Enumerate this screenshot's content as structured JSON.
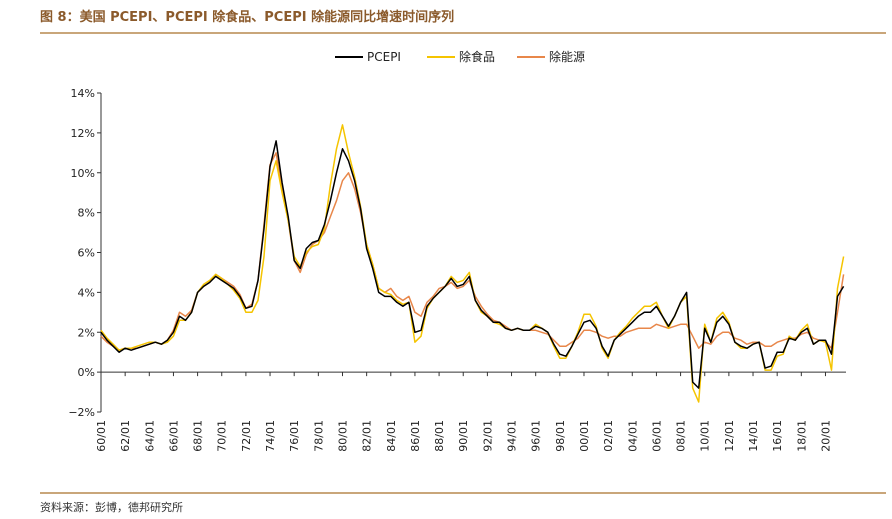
{
  "header": {
    "title": "图 8：美国 PCEPI、PCEPI 除食品、PCEPI 除能源同比增速时间序列"
  },
  "footer": {
    "source": "资料来源：彭博，德邦研究所"
  },
  "chart_data": {
    "type": "line",
    "title": "图 8：美国 PCEPI、PCEPI 除食品、PCEPI 除能源同比增速时间序列",
    "xlabel": "",
    "ylabel": "",
    "ylim": [
      -2,
      14
    ],
    "yticks": [
      "−2%",
      "0%",
      "2%",
      "4%",
      "6%",
      "8%",
      "10%",
      "12%",
      "14%"
    ],
    "xticks": [
      "60/01",
      "62/01",
      "64/01",
      "66/01",
      "68/01",
      "70/01",
      "72/01",
      "74/01",
      "76/01",
      "78/01",
      "80/01",
      "82/01",
      "84/01",
      "86/01",
      "88/01",
      "90/01",
      "92/01",
      "94/01",
      "96/01",
      "98/01",
      "00/01",
      "02/01",
      "04/01",
      "06/01",
      "08/01",
      "10/01",
      "12/01",
      "14/01",
      "16/01",
      "18/01",
      "20/01"
    ],
    "grid": false,
    "legend_position": "top-center",
    "series": [
      {
        "name": "PCEPI",
        "color": "#000000",
        "t": [
          1960,
          1960.5,
          1961,
          1961.5,
          1962,
          1962.5,
          1963,
          1963.5,
          1964,
          1964.5,
          1965,
          1965.5,
          1966,
          1966.5,
          1967,
          1967.5,
          1968,
          1968.5,
          1969,
          1969.5,
          1970,
          1970.5,
          1971,
          1971.5,
          1972,
          1972.5,
          1973,
          1973.5,
          1974,
          1974.5,
          1975,
          1975.5,
          1976,
          1976.5,
          1977,
          1977.5,
          1978,
          1978.5,
          1979,
          1979.5,
          1980,
          1980.5,
          1981,
          1981.5,
          1982,
          1982.5,
          1983,
          1983.5,
          1984,
          1984.5,
          1985,
          1985.5,
          1986,
          1986.5,
          1987,
          1987.5,
          1988,
          1988.5,
          1989,
          1989.5,
          1990,
          1990.5,
          1991,
          1991.5,
          1992,
          1992.5,
          1993,
          1993.5,
          1994,
          1994.5,
          1995,
          1995.5,
          1996,
          1996.5,
          1997,
          1997.5,
          1998,
          1998.5,
          1999,
          1999.5,
          2000,
          2000.5,
          2001,
          2001.5,
          2002,
          2002.5,
          2003,
          2003.5,
          2004,
          2004.5,
          2005,
          2005.5,
          2006,
          2006.5,
          2007,
          2007.5,
          2008,
          2008.5,
          2009,
          2009.5,
          2010,
          2010.5,
          2011,
          2011.5,
          2012,
          2012.5,
          2013,
          2013.5,
          2014,
          2014.5,
          2015,
          2015.5,
          2016,
          2016.5,
          2017,
          2017.5,
          2018,
          2018.5,
          2019,
          2019.5,
          2020,
          2020.5,
          2021,
          2021.5
        ],
        "values": [
          2.0,
          1.6,
          1.3,
          1.0,
          1.2,
          1.1,
          1.2,
          1.3,
          1.4,
          1.5,
          1.4,
          1.6,
          2.0,
          2.8,
          2.6,
          3.0,
          4.0,
          4.3,
          4.5,
          4.8,
          4.6,
          4.4,
          4.2,
          3.8,
          3.2,
          3.3,
          4.6,
          7.2,
          10.3,
          11.6,
          9.5,
          7.8,
          5.6,
          5.2,
          6.2,
          6.5,
          6.6,
          7.4,
          8.6,
          10.0,
          11.2,
          10.6,
          9.6,
          8.2,
          6.2,
          5.2,
          4.0,
          3.8,
          3.8,
          3.5,
          3.3,
          3.5,
          2.0,
          2.1,
          3.3,
          3.7,
          4.0,
          4.3,
          4.7,
          4.3,
          4.4,
          4.8,
          3.6,
          3.1,
          2.8,
          2.5,
          2.5,
          2.2,
          2.1,
          2.2,
          2.1,
          2.1,
          2.3,
          2.2,
          2.0,
          1.4,
          0.9,
          0.8,
          1.3,
          1.9,
          2.5,
          2.6,
          2.2,
          1.3,
          0.8,
          1.6,
          1.9,
          2.2,
          2.5,
          2.8,
          3.0,
          3.0,
          3.3,
          2.8,
          2.3,
          2.8,
          3.5,
          4.0,
          -0.5,
          -0.8,
          2.2,
          1.5,
          2.5,
          2.8,
          2.4,
          1.5,
          1.3,
          1.2,
          1.4,
          1.5,
          0.2,
          0.3,
          1.0,
          1.0,
          1.7,
          1.6,
          2.0,
          2.2,
          1.4,
          1.6,
          1.6,
          0.9,
          3.8,
          4.3
        ]
      },
      {
        "name": "除食品",
        "color": "#f5c400",
        "t": [
          1960,
          1960.5,
          1961,
          1961.5,
          1962,
          1962.5,
          1963,
          1963.5,
          1964,
          1964.5,
          1965,
          1965.5,
          1966,
          1966.5,
          1967,
          1967.5,
          1968,
          1968.5,
          1969,
          1969.5,
          1970,
          1970.5,
          1971,
          1971.5,
          1972,
          1972.5,
          1973,
          1973.5,
          1974,
          1974.5,
          1975,
          1975.5,
          1976,
          1976.5,
          1977,
          1977.5,
          1978,
          1978.5,
          1979,
          1979.5,
          1980,
          1980.5,
          1981,
          1981.5,
          1982,
          1982.5,
          1983,
          1983.5,
          1984,
          1984.5,
          1985,
          1985.5,
          1986,
          1986.5,
          1987,
          1987.5,
          1988,
          1988.5,
          1989,
          1989.5,
          1990,
          1990.5,
          1991,
          1991.5,
          1992,
          1992.5,
          1993,
          1993.5,
          1994,
          1994.5,
          1995,
          1995.5,
          1996,
          1996.5,
          1997,
          1997.5,
          1998,
          1998.5,
          1999,
          1999.5,
          2000,
          2000.5,
          2001,
          2001.5,
          2002,
          2002.5,
          2003,
          2003.5,
          2004,
          2004.5,
          2005,
          2005.5,
          2006,
          2006.5,
          2007,
          2007.5,
          2008,
          2008.5,
          2009,
          2009.5,
          2010,
          2010.5,
          2011,
          2011.5,
          2012,
          2012.5,
          2013,
          2013.5,
          2014,
          2014.5,
          2015,
          2015.5,
          2016,
          2016.5,
          2017,
          2017.5,
          2018,
          2018.5,
          2019,
          2019.5,
          2020,
          2020.5,
          2021,
          2021.5
        ],
        "values": [
          2.1,
          1.7,
          1.4,
          1.1,
          1.2,
          1.2,
          1.3,
          1.4,
          1.5,
          1.5,
          1.4,
          1.5,
          1.8,
          2.6,
          2.6,
          3.0,
          4.0,
          4.4,
          4.6,
          4.9,
          4.7,
          4.4,
          4.1,
          3.7,
          3.0,
          3.0,
          3.6,
          5.8,
          9.6,
          10.6,
          9.0,
          7.6,
          5.8,
          5.3,
          6.0,
          6.3,
          6.4,
          7.2,
          9.4,
          11.2,
          12.4,
          11.0,
          9.8,
          8.3,
          6.4,
          5.4,
          4.2,
          4.0,
          3.9,
          3.6,
          3.4,
          3.5,
          1.5,
          1.8,
          3.2,
          3.7,
          4.0,
          4.3,
          4.8,
          4.5,
          4.6,
          5.0,
          3.6,
          3.0,
          2.8,
          2.5,
          2.4,
          2.2,
          2.1,
          2.2,
          2.1,
          2.1,
          2.4,
          2.2,
          2.0,
          1.3,
          0.7,
          0.7,
          1.3,
          2.0,
          2.9,
          2.9,
          2.3,
          1.2,
          0.7,
          1.6,
          2.0,
          2.3,
          2.7,
          3.0,
          3.3,
          3.3,
          3.5,
          2.8,
          2.2,
          2.8,
          3.5,
          3.8,
          -0.8,
          -1.5,
          2.4,
          1.5,
          2.7,
          3.0,
          2.5,
          1.5,
          1.2,
          1.2,
          1.4,
          1.5,
          0.1,
          0.1,
          0.8,
          0.9,
          1.8,
          1.6,
          2.1,
          2.4,
          1.4,
          1.6,
          1.5,
          0.1,
          4.2,
          5.8
        ]
      },
      {
        "name": "除能源",
        "color": "#e8874a",
        "t": [
          1960,
          1960.5,
          1961,
          1961.5,
          1962,
          1962.5,
          1963,
          1963.5,
          1964,
          1964.5,
          1965,
          1965.5,
          1966,
          1966.5,
          1967,
          1967.5,
          1968,
          1968.5,
          1969,
          1969.5,
          1970,
          1970.5,
          1971,
          1971.5,
          1972,
          1972.5,
          1973,
          1973.5,
          1974,
          1974.5,
          1975,
          1975.5,
          1976,
          1976.5,
          1977,
          1977.5,
          1978,
          1978.5,
          1979,
          1979.5,
          1980,
          1980.5,
          1981,
          1981.5,
          1982,
          1982.5,
          1983,
          1983.5,
          1984,
          1984.5,
          1985,
          1985.5,
          1986,
          1986.5,
          1987,
          1987.5,
          1988,
          1988.5,
          1989,
          1989.5,
          1990,
          1990.5,
          1991,
          1991.5,
          1992,
          1992.5,
          1993,
          1993.5,
          1994,
          1994.5,
          1995,
          1995.5,
          1996,
          1996.5,
          1997,
          1997.5,
          1998,
          1998.5,
          1999,
          1999.5,
          2000,
          2000.5,
          2001,
          2001.5,
          2002,
          2002.5,
          2003,
          2003.5,
          2004,
          2004.5,
          2005,
          2005.5,
          2006,
          2006.5,
          2007,
          2007.5,
          2008,
          2008.5,
          2009,
          2009.5,
          2010,
          2010.5,
          2011,
          2011.5,
          2012,
          2012.5,
          2013,
          2013.5,
          2014,
          2014.5,
          2015,
          2015.5,
          2016,
          2016.5,
          2017,
          2017.5,
          2018,
          2018.5,
          2019,
          2019.5,
          2020,
          2020.5,
          2021,
          2021.5
        ],
        "values": [
          1.8,
          1.5,
          1.3,
          1.1,
          1.2,
          1.2,
          1.2,
          1.3,
          1.4,
          1.5,
          1.4,
          1.6,
          2.1,
          3.0,
          2.8,
          3.1,
          4.0,
          4.3,
          4.5,
          4.9,
          4.7,
          4.5,
          4.3,
          3.9,
          3.2,
          3.4,
          4.6,
          7.4,
          10.4,
          11.0,
          9.2,
          7.6,
          5.6,
          5.0,
          5.9,
          6.4,
          6.6,
          7.0,
          7.8,
          8.6,
          9.6,
          10.0,
          9.2,
          8.0,
          6.4,
          5.4,
          4.2,
          4.0,
          4.2,
          3.8,
          3.6,
          3.8,
          3.0,
          2.8,
          3.5,
          3.8,
          4.2,
          4.3,
          4.5,
          4.2,
          4.3,
          4.6,
          3.8,
          3.3,
          2.9,
          2.6,
          2.5,
          2.3,
          2.1,
          2.2,
          2.1,
          2.1,
          2.1,
          2.0,
          1.9,
          1.6,
          1.3,
          1.3,
          1.5,
          1.7,
          2.1,
          2.1,
          2.0,
          1.8,
          1.7,
          1.8,
          1.8,
          2.0,
          2.1,
          2.2,
          2.2,
          2.2,
          2.4,
          2.3,
          2.2,
          2.3,
          2.4,
          2.4,
          1.8,
          1.2,
          1.5,
          1.4,
          1.8,
          2.0,
          2.0,
          1.7,
          1.6,
          1.4,
          1.5,
          1.5,
          1.3,
          1.3,
          1.5,
          1.6,
          1.7,
          1.7,
          1.9,
          2.0,
          1.7,
          1.6,
          1.5,
          1.2,
          3.0,
          4.9
        ]
      }
    ]
  }
}
